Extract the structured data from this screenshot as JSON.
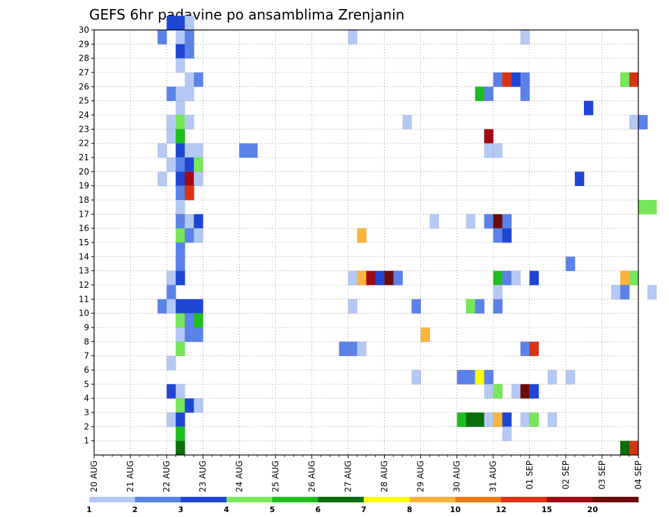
{
  "chart_data": {
    "type": "heatmap",
    "title": "GEFS 6hr padavine po ansamblima Zrenjanin",
    "xlabel": "",
    "ylabel": "",
    "x_ticks": [
      "20 AUG",
      "21 AUG",
      "22 AUG",
      "23 AUG",
      "24 AUG",
      "25 AUG",
      "26 AUG",
      "27 AUG",
      "28 AUG",
      "29 AUG",
      "30 AUG",
      "31 AUG",
      "01 SEP",
      "02 SEP",
      "03 SEP",
      "04 SEP"
    ],
    "x_range_days": [
      0,
      15
    ],
    "y_ticks": [
      "1",
      "2",
      "3",
      "4",
      "5",
      "6",
      "7",
      "8",
      "9",
      "10",
      "11",
      "12",
      "13",
      "14",
      "15",
      "16",
      "17",
      "18",
      "19",
      "20",
      "21",
      "22",
      "23",
      "24",
      "25",
      "26",
      "27",
      "28",
      "29",
      "30"
    ],
    "y_range": [
      0,
      30
    ],
    "grid": true,
    "colorbar": {
      "position": "bottom",
      "labels": [
        "1",
        "2",
        "3",
        "4",
        "5",
        "6",
        "7",
        "8",
        "10",
        "12",
        "15",
        "20"
      ],
      "colors": [
        "#b4c8f4",
        "#5a82e8",
        "#1e46d2",
        "#78e65a",
        "#1ebe1e",
        "#0a6e0a",
        "#ffff00",
        "#fab43c",
        "#f07814",
        "#dc3214",
        "#a00a14",
        "#6e0a0a"
      ]
    },
    "cells": [
      [
        2.0,
        30,
        2
      ],
      [
        2.25,
        30,
        2
      ],
      [
        2.5,
        30,
        0
      ],
      [
        1.75,
        29,
        1
      ],
      [
        2.25,
        29,
        0
      ],
      [
        2.5,
        29,
        1
      ],
      [
        7.0,
        29,
        0
      ],
      [
        11.75,
        29,
        0
      ],
      [
        2.25,
        28,
        2
      ],
      [
        2.5,
        28,
        1
      ],
      [
        2.25,
        27,
        0
      ],
      [
        2.5,
        26,
        0
      ],
      [
        2.75,
        26,
        1
      ],
      [
        11.0,
        26,
        1
      ],
      [
        11.25,
        26,
        9
      ],
      [
        11.5,
        26,
        2
      ],
      [
        11.75,
        26,
        1
      ],
      [
        14.5,
        26,
        3
      ],
      [
        14.75,
        26,
        9
      ],
      [
        2.0,
        25,
        1
      ],
      [
        2.25,
        25,
        0
      ],
      [
        2.5,
        25,
        0
      ],
      [
        10.5,
        25,
        4
      ],
      [
        10.75,
        25,
        1
      ],
      [
        11.75,
        25,
        1
      ],
      [
        2.25,
        24,
        0
      ],
      [
        13.5,
        24,
        2
      ],
      [
        2.0,
        23,
        0
      ],
      [
        2.25,
        23,
        3
      ],
      [
        2.5,
        23,
        0
      ],
      [
        8.5,
        23,
        0
      ],
      [
        14.75,
        23,
        0
      ],
      [
        15.0,
        23,
        1
      ],
      [
        2.0,
        22,
        0
      ],
      [
        2.25,
        22,
        4
      ],
      [
        10.75,
        22,
        10
      ],
      [
        1.75,
        21,
        0
      ],
      [
        2.25,
        21,
        2
      ],
      [
        2.5,
        21,
        0
      ],
      [
        2.75,
        21,
        0
      ],
      [
        4.0,
        21,
        1
      ],
      [
        4.25,
        21,
        1
      ],
      [
        10.75,
        21,
        0
      ],
      [
        11.0,
        21,
        0
      ],
      [
        2.0,
        20,
        0
      ],
      [
        2.25,
        20,
        1
      ],
      [
        2.5,
        20,
        2
      ],
      [
        2.75,
        20,
        3
      ],
      [
        1.75,
        19,
        0
      ],
      [
        2.25,
        19,
        2
      ],
      [
        2.5,
        19,
        10
      ],
      [
        2.75,
        19,
        0
      ],
      [
        13.25,
        19,
        2
      ],
      [
        2.25,
        18,
        1
      ],
      [
        2.5,
        18,
        9
      ],
      [
        2.25,
        17,
        0
      ],
      [
        15.0,
        17,
        3
      ],
      [
        15.25,
        17,
        3
      ],
      [
        2.25,
        16,
        1
      ],
      [
        2.5,
        16,
        0
      ],
      [
        2.75,
        16,
        2
      ],
      [
        9.25,
        16,
        0
      ],
      [
        10.25,
        16,
        0
      ],
      [
        10.75,
        16,
        1
      ],
      [
        11.0,
        16,
        11
      ],
      [
        11.25,
        16,
        1
      ],
      [
        2.25,
        15,
        3
      ],
      [
        2.5,
        15,
        1
      ],
      [
        2.75,
        15,
        0
      ],
      [
        7.25,
        15,
        7
      ],
      [
        11.0,
        15,
        1
      ],
      [
        11.25,
        15,
        2
      ],
      [
        2.25,
        14,
        1
      ],
      [
        2.25,
        13,
        1
      ],
      [
        13.0,
        13,
        1
      ],
      [
        2.0,
        12,
        0
      ],
      [
        2.25,
        12,
        2
      ],
      [
        7.0,
        12,
        0
      ],
      [
        7.25,
        12,
        7
      ],
      [
        7.5,
        12,
        10
      ],
      [
        7.75,
        12,
        2
      ],
      [
        8.0,
        12,
        11
      ],
      [
        8.25,
        12,
        1
      ],
      [
        11.0,
        12,
        4
      ],
      [
        11.25,
        12,
        1
      ],
      [
        11.5,
        12,
        0
      ],
      [
        12.0,
        12,
        2
      ],
      [
        14.5,
        12,
        7
      ],
      [
        14.75,
        12,
        3
      ],
      [
        2.0,
        11,
        1
      ],
      [
        11.0,
        11,
        0
      ],
      [
        14.25,
        11,
        0
      ],
      [
        14.5,
        11,
        1
      ],
      [
        15.25,
        11,
        0
      ],
      [
        1.75,
        10,
        1
      ],
      [
        2.0,
        10,
        0
      ],
      [
        2.25,
        10,
        2
      ],
      [
        2.5,
        10,
        2
      ],
      [
        2.75,
        10,
        2
      ],
      [
        7.0,
        10,
        0
      ],
      [
        8.75,
        10,
        1
      ],
      [
        10.25,
        10,
        3
      ],
      [
        10.5,
        10,
        1
      ],
      [
        11.0,
        10,
        1
      ],
      [
        2.25,
        9,
        3
      ],
      [
        2.5,
        9,
        1
      ],
      [
        2.75,
        9,
        4
      ],
      [
        2.25,
        8,
        0
      ],
      [
        2.5,
        8,
        1
      ],
      [
        2.75,
        8,
        1
      ],
      [
        9.0,
        8,
        7
      ],
      [
        2.25,
        7,
        3
      ],
      [
        6.75,
        7,
        1
      ],
      [
        7.0,
        7,
        1
      ],
      [
        7.25,
        7,
        0
      ],
      [
        11.75,
        7,
        1
      ],
      [
        12.0,
        7,
        9
      ],
      [
        2.0,
        6,
        0
      ],
      [
        8.75,
        5,
        0
      ],
      [
        10.0,
        5,
        1
      ],
      [
        10.25,
        5,
        1
      ],
      [
        10.5,
        5,
        6
      ],
      [
        10.75,
        5,
        1
      ],
      [
        12.5,
        5,
        0
      ],
      [
        13.0,
        5,
        0
      ],
      [
        2.0,
        4,
        2
      ],
      [
        2.25,
        4,
        0
      ],
      [
        10.75,
        4,
        0
      ],
      [
        11.0,
        4,
        3
      ],
      [
        11.5,
        4,
        0
      ],
      [
        11.75,
        4,
        11
      ],
      [
        12.0,
        4,
        2
      ],
      [
        2.25,
        3,
        3
      ],
      [
        2.5,
        3,
        2
      ],
      [
        2.75,
        3,
        0
      ],
      [
        2.0,
        2,
        0
      ],
      [
        2.25,
        2,
        2
      ],
      [
        10.0,
        2,
        4
      ],
      [
        10.25,
        2,
        5
      ],
      [
        10.5,
        2,
        5
      ],
      [
        10.75,
        2,
        0
      ],
      [
        11.0,
        2,
        7
      ],
      [
        11.25,
        2,
        2
      ],
      [
        11.75,
        2,
        0
      ],
      [
        12.0,
        2,
        3
      ],
      [
        12.5,
        2,
        0
      ],
      [
        2.25,
        1,
        4
      ],
      [
        11.25,
        1,
        0
      ],
      [
        2.25,
        0,
        5
      ],
      [
        14.5,
        0,
        5
      ],
      [
        14.75,
        0,
        9
      ]
    ]
  }
}
